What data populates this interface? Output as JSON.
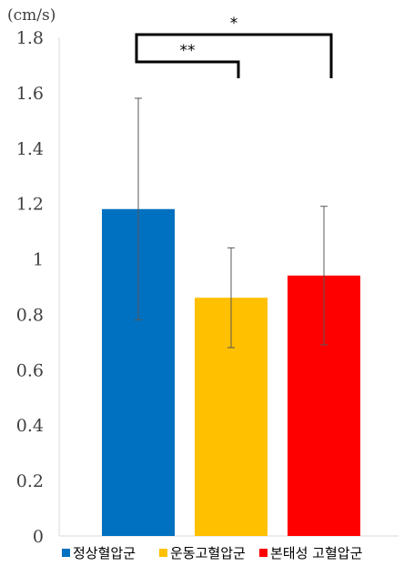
{
  "chart_data": {
    "type": "bar",
    "unit_label": "(cm/s)",
    "categories": [
      "정상혈압군",
      "운동고혈압군",
      "본태성 고혈압군"
    ],
    "values": [
      1.18,
      0.86,
      0.94
    ],
    "error": [
      0.4,
      0.18,
      0.25
    ],
    "colors": [
      "#0070C0",
      "#FFC000",
      "#FF0000"
    ],
    "ylim": [
      0,
      1.8
    ],
    "yticks": [
      "0",
      "0.2",
      "0.4",
      "0.6",
      "0.8",
      "1",
      "1.2",
      "1.4",
      "1.6",
      "1.8"
    ],
    "grid": false,
    "legend_position": "bottom",
    "significance": [
      {
        "from": 0,
        "to": 1,
        "label": "**"
      },
      {
        "from": 0,
        "to": 2,
        "label": "*"
      }
    ]
  }
}
